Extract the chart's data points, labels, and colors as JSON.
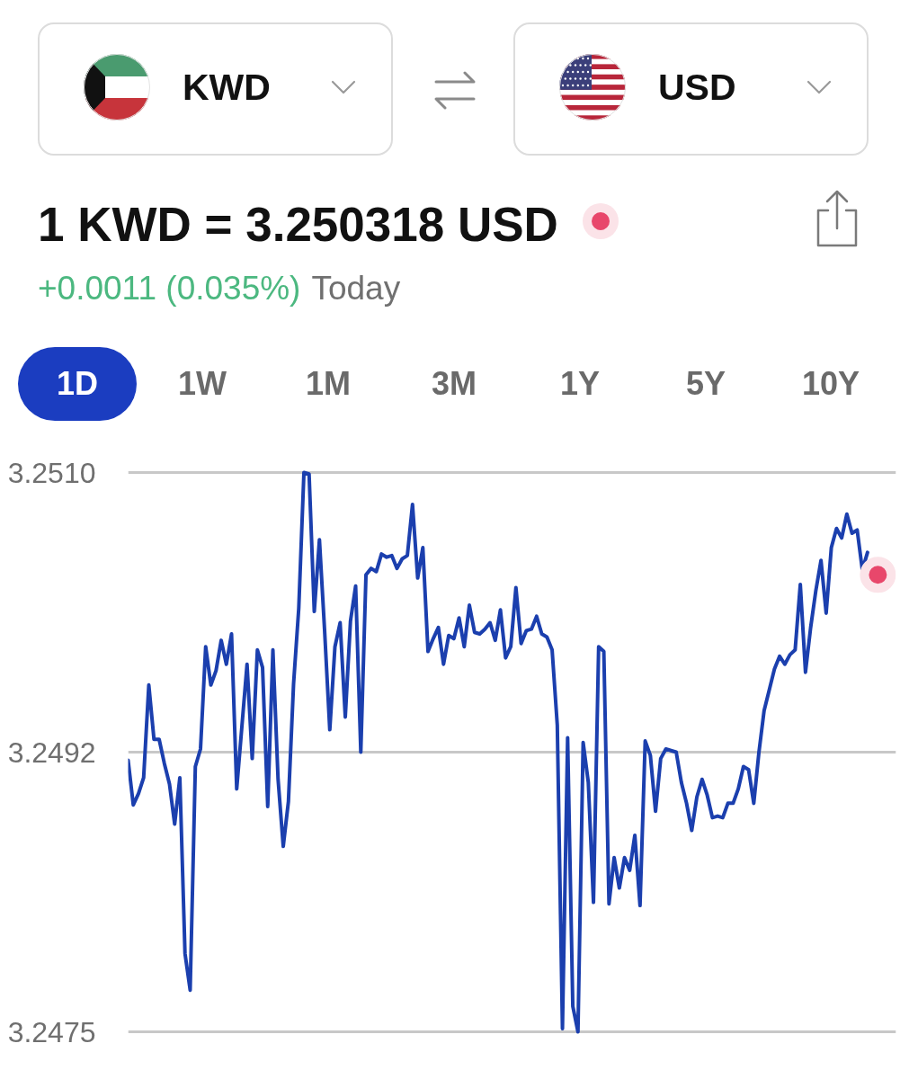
{
  "chart_data": {
    "type": "line",
    "title": "1 KWD = 3.250318 USD",
    "subtitle": "+0.0011 (0.035%)",
    "annotations": [
      "KWD",
      "USD",
      "Today",
      "1D",
      "1W",
      "1M",
      "3M",
      "1Y",
      "5Y",
      "10Y"
    ],
    "categories": [
      null,
      null,
      null,
      null,
      null,
      null,
      null,
      null,
      null,
      null,
      null,
      null,
      null,
      null,
      null,
      null,
      null,
      null,
      null,
      null,
      null,
      null,
      null,
      null,
      null,
      null,
      null,
      null,
      null,
      null,
      null,
      null,
      null,
      null,
      null,
      null,
      null,
      null,
      null,
      null,
      null,
      null,
      null,
      null,
      null,
      null,
      null,
      null,
      null,
      null,
      null,
      null,
      null,
      null,
      null,
      null,
      null,
      null,
      null,
      null,
      null,
      null,
      null,
      null,
      null,
      null,
      null,
      null,
      null,
      null,
      null,
      null,
      null,
      null,
      null,
      null,
      null,
      null,
      null,
      null,
      null,
      null,
      null,
      null,
      null,
      null,
      null,
      null,
      null,
      null,
      null,
      null,
      null,
      null,
      null,
      null,
      null,
      null,
      null,
      null,
      null,
      null,
      null,
      null,
      null,
      null,
      null,
      null,
      null,
      null,
      null,
      null,
      null,
      null,
      null,
      null,
      null,
      null,
      null,
      null,
      null,
      null,
      null,
      null,
      null,
      null,
      null,
      null,
      null,
      null,
      null,
      null,
      null,
      null,
      null,
      null,
      null,
      null,
      null,
      null,
      null,
      null,
      null,
      null,
      null,
      null
    ],
    "series": [
      {
        "color": "#1b3fae",
        "values": [
          3.2492,
          3.24892,
          3.24899,
          3.24909,
          3.24967,
          3.24933,
          3.24933,
          3.24918,
          3.24905,
          3.2488,
          3.24909,
          3.24799,
          3.24776,
          3.24916,
          3.24927,
          3.24991,
          3.24967,
          3.24976,
          3.24995,
          3.2498,
          3.24999,
          3.24902,
          3.24941,
          3.2498,
          3.24921,
          3.24989,
          3.24978,
          3.24891,
          3.24989,
          3.24908,
          3.24866,
          3.24894,
          3.24968,
          3.25015,
          3.251,
          3.25099,
          3.25013,
          3.25058,
          3.25001,
          3.24939,
          3.24991,
          3.25006,
          3.24947,
          3.25007,
          3.25029,
          3.24925,
          3.25036,
          3.2504,
          3.25038,
          3.25049,
          3.25047,
          3.25048,
          3.2504,
          3.25046,
          3.25048,
          3.2508,
          3.25034,
          3.25053,
          3.24988,
          3.24996,
          3.25003,
          3.2498,
          3.24998,
          3.24996,
          3.25009,
          3.24991,
          3.25017,
          3.25,
          3.24999,
          3.25002,
          3.25006,
          3.24995,
          3.25014,
          3.24984,
          3.24991,
          3.25028,
          3.24993,
          3.25001,
          3.25002,
          3.2501,
          3.24999,
          3.24997,
          3.24989,
          3.24942,
          3.24752,
          3.24934,
          3.24766,
          3.2475,
          3.24931,
          3.24906,
          3.24831,
          3.24991,
          3.24988,
          3.2483,
          3.24859,
          3.2484,
          3.24859,
          3.24851,
          3.24873,
          3.24829,
          3.24932,
          3.24923,
          3.24888,
          3.24921,
          3.24927,
          3.24926,
          3.24925,
          3.24906,
          3.24893,
          3.24876,
          3.24897,
          3.24908,
          3.24898,
          3.24884,
          3.24885,
          3.24884,
          3.24893,
          3.24893,
          3.24902,
          3.24916,
          3.24914,
          3.24893,
          3.24925,
          3.24951,
          3.24964,
          3.24977,
          3.24985,
          3.2498,
          3.24986,
          3.24989,
          3.2503,
          3.24975,
          3.25003,
          3.25026,
          3.25045,
          3.25012,
          3.25053,
          3.25065,
          3.25059,
          3.25074,
          3.25062,
          3.25064,
          3.25039,
          3.2505,
          null,
          null
        ]
      },
      {
        "type": "scatter",
        "color": "#e8476b",
        "values": [
          null,
          null,
          null,
          null,
          null,
          null,
          null,
          null,
          null,
          null,
          null,
          null,
          null,
          null,
          null,
          null,
          null,
          null,
          null,
          null,
          null,
          null,
          null,
          null,
          null,
          null,
          null,
          null,
          null,
          null,
          null,
          null,
          null,
          null,
          null,
          null,
          null,
          null,
          null,
          null,
          null,
          null,
          null,
          null,
          null,
          null,
          null,
          null,
          null,
          null,
          null,
          null,
          null,
          null,
          null,
          null,
          null,
          null,
          null,
          null,
          null,
          null,
          null,
          null,
          null,
          null,
          null,
          null,
          null,
          null,
          null,
          null,
          null,
          null,
          null,
          null,
          null,
          null,
          null,
          null,
          null,
          null,
          null,
          null,
          null,
          null,
          null,
          null,
          null,
          null,
          null,
          null,
          null,
          null,
          null,
          null,
          null,
          null,
          null,
          null,
          null,
          null,
          null,
          null,
          null,
          null,
          null,
          null,
          null,
          null,
          null,
          null,
          null,
          null,
          null,
          null,
          null,
          null,
          null,
          null,
          null,
          null,
          null,
          null,
          null,
          null,
          null,
          null,
          null,
          null,
          null,
          null,
          null,
          null,
          null,
          null,
          null,
          null,
          null,
          null,
          null,
          null,
          null,
          null,
          null,
          3.25036
        ]
      }
    ],
    "ylim": [
      3.2475,
      3.251
    ],
    "yticks": [
      {
        "value": 3.251,
        "label": "3.2510"
      },
      {
        "value": 3.24925,
        "label": "3.2492"
      },
      {
        "value": 3.2475,
        "label": "3.2475"
      }
    ],
    "grid": "y"
  }
}
